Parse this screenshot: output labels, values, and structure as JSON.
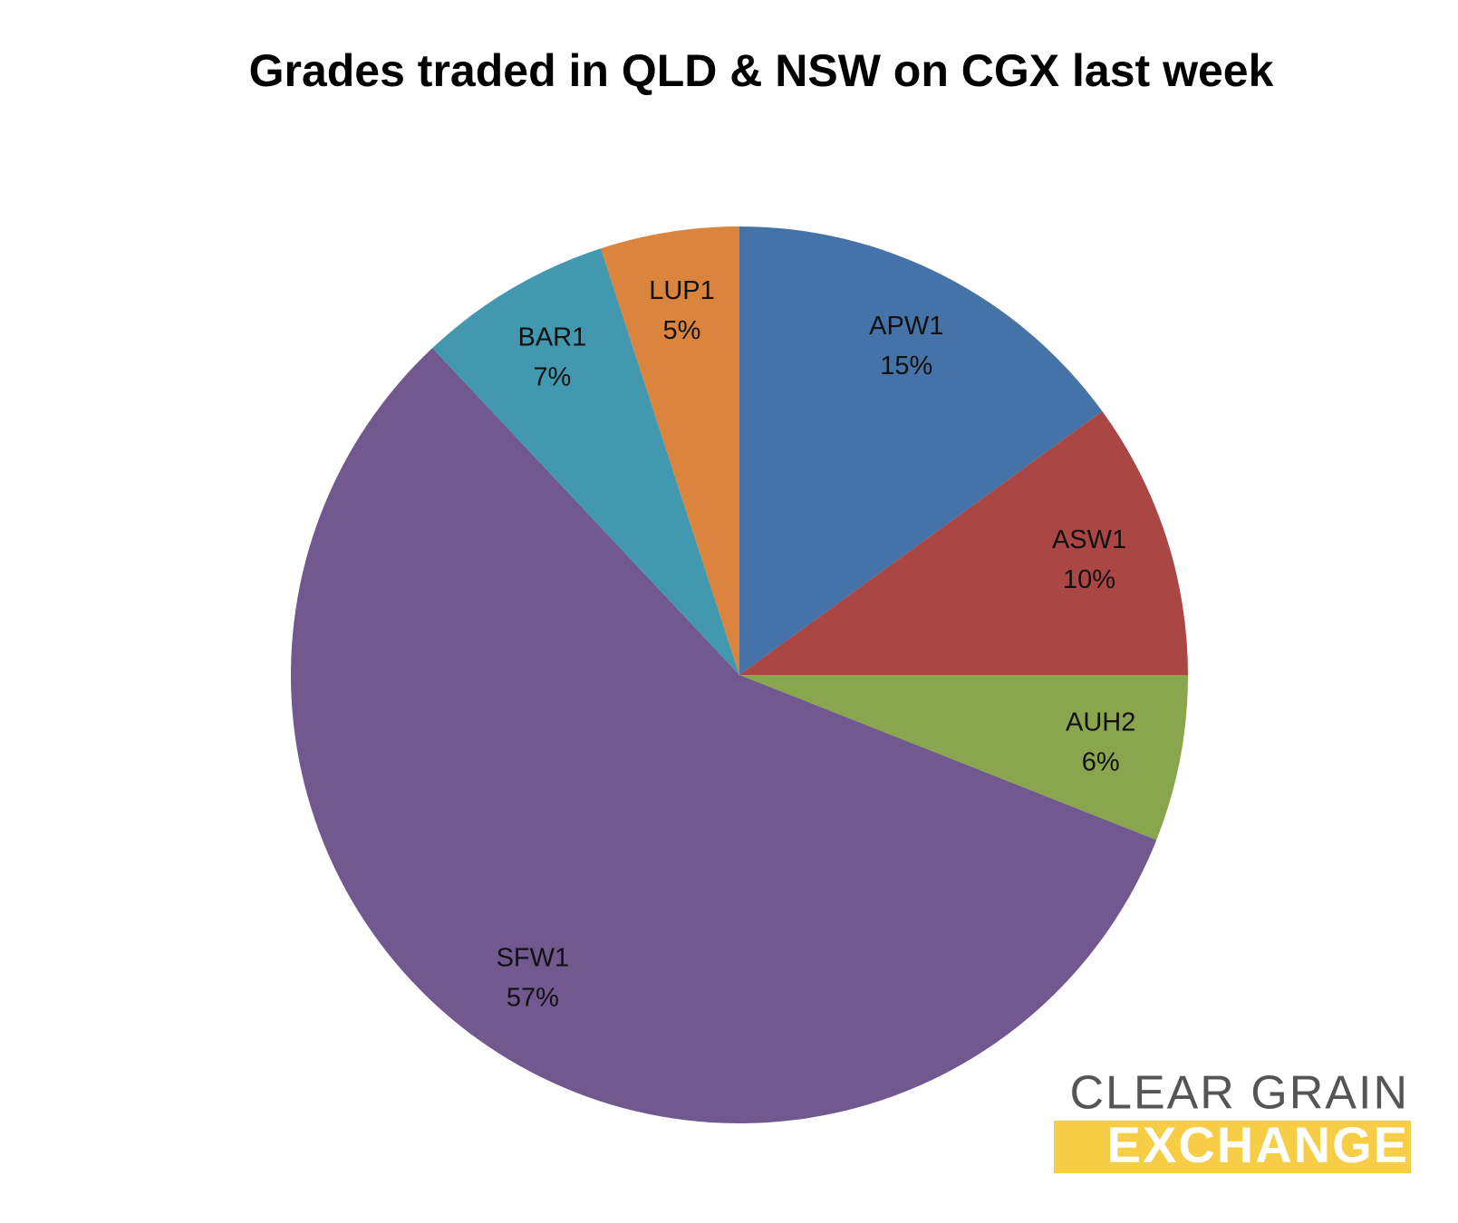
{
  "chart_data": {
    "type": "pie",
    "title": "Grades traded in QLD & NSW on CGX last week",
    "categories": [
      "APW1",
      "ASW1",
      "AUH2",
      "SFW1",
      "BAR1",
      "LUP1"
    ],
    "values": [
      15,
      10,
      6,
      57,
      7,
      5
    ],
    "value_labels": [
      "15%",
      "10%",
      "6%",
      "57%",
      "7%",
      "5%"
    ],
    "colors": [
      "#4572a7",
      "#aa4643",
      "#89a54e",
      "#71588f",
      "#4198af",
      "#db843d"
    ]
  },
  "logo": {
    "line1": "CLEAR GRAIN",
    "line2": "EXCHANGE"
  }
}
